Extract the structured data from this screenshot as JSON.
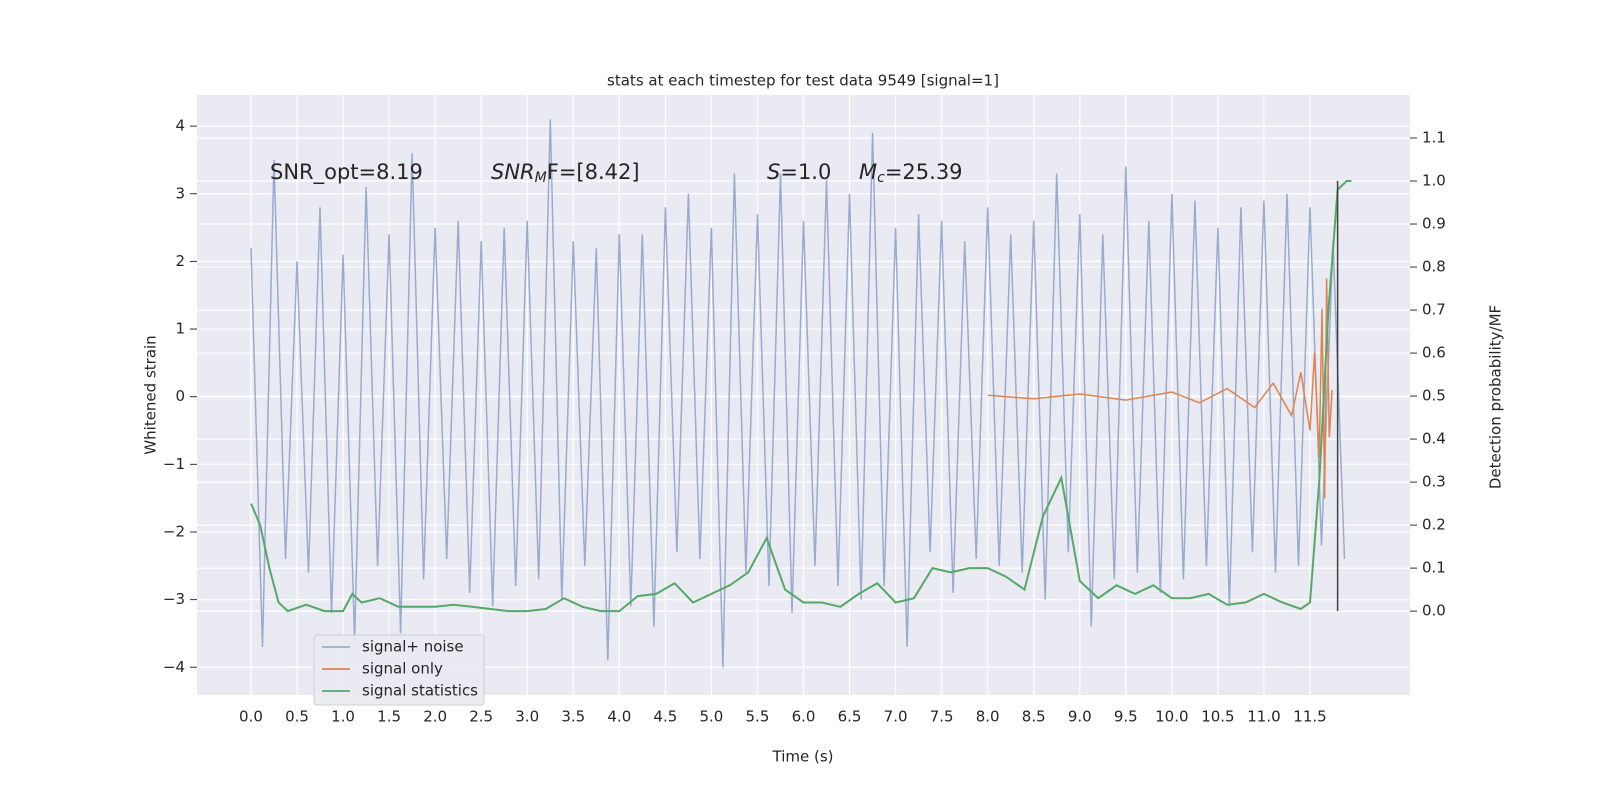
{
  "chart_data": {
    "type": "line",
    "title": "stats at each timestep for test data 9549 [signal=1]",
    "x_label": "Time (s)",
    "y_label": "Whitened strain",
    "y2_label": "Detection probability/MF",
    "xlim": [
      -0.586,
      12.586
    ],
    "ylim": [
      -4.41,
      4.46
    ],
    "y2lim": [
      -0.195,
      1.2
    ],
    "grid": true,
    "background": "#eaeaf2",
    "legend": "lower left",
    "xticks": [
      {
        "value": 0,
        "label": "0.0"
      },
      0.5,
      {
        "value": 1,
        "label": "1.0"
      },
      1.5,
      {
        "value": 2,
        "label": "2.0"
      },
      2.5,
      {
        "value": 3,
        "label": "3.0"
      },
      3.5,
      {
        "value": 4,
        "label": "4.0"
      },
      4.5,
      {
        "value": 5,
        "label": "5.0"
      },
      5.5,
      {
        "value": 6,
        "label": "6.0"
      },
      6.5,
      {
        "value": 7,
        "label": "7.0"
      },
      7.5,
      {
        "value": 8,
        "label": "8.0"
      },
      8.5,
      {
        "value": 9,
        "label": "9.0"
      },
      9.5,
      {
        "value": 10,
        "label": "10.0"
      },
      10.5,
      {
        "value": 11,
        "label": "11.0"
      },
      11.5
    ],
    "yticks": [
      {
        "value": -4,
        "label": "−4"
      },
      {
        "value": -3,
        "label": "−3"
      },
      {
        "value": -2,
        "label": "−2"
      },
      {
        "value": -1,
        "label": "−1"
      },
      0,
      1,
      2,
      3,
      4
    ],
    "y2ticks": [
      {
        "value": 0,
        "label": "0.0"
      },
      0.1,
      0.2,
      0.3,
      0.4,
      0.5,
      0.6,
      0.7,
      0.8,
      0.9,
      {
        "value": 1,
        "label": "1.0"
      },
      1.1
    ],
    "annotations": [
      {
        "parts": [
          "SNR_opt=8.19"
        ]
      },
      {
        "parts": [
          "SNR",
          "M",
          "F=[8.42]"
        ]
      },
      {
        "parts": [
          "S",
          "=1.0"
        ]
      },
      {
        "parts": [
          "M",
          "c",
          "=25.39"
        ]
      }
    ],
    "series": [
      {
        "name": "signal+ noise",
        "color": "#9aabd0",
        "axis": "y",
        "x": [
          0,
          0.125,
          0.25,
          0.375,
          0.5,
          0.625,
          0.75,
          0.875,
          1,
          1.125,
          1.25,
          1.375,
          1.5,
          1.625,
          1.75,
          1.875,
          2,
          2.125,
          2.25,
          2.375,
          2.5,
          2.625,
          2.75,
          2.875,
          3,
          3.125,
          3.25,
          3.375,
          3.5,
          3.625,
          3.75,
          3.875,
          4,
          4.125,
          4.25,
          4.375,
          4.5,
          4.625,
          4.75,
          4.875,
          5,
          5.125,
          5.25,
          5.375,
          5.5,
          5.625,
          5.75,
          5.875,
          6,
          6.125,
          6.25,
          6.375,
          6.5,
          6.625,
          6.75,
          6.875,
          7,
          7.125,
          7.25,
          7.375,
          7.5,
          7.625,
          7.75,
          7.875,
          8,
          8.125,
          8.25,
          8.375,
          8.5,
          8.625,
          8.75,
          8.875,
          9,
          9.125,
          9.25,
          9.375,
          9.5,
          9.625,
          9.75,
          9.875,
          10,
          10.125,
          10.25,
          10.375,
          10.5,
          10.625,
          10.75,
          10.875,
          11,
          11.125,
          11.25,
          11.375,
          11.5,
          11.625,
          11.75,
          11.875
        ],
        "values": [
          2.2,
          -3.7,
          3.5,
          -2.4,
          2.0,
          -2.6,
          2.8,
          -3.2,
          2.1,
          -3.6,
          3.1,
          -2.5,
          2.4,
          -3.5,
          3.6,
          -2.7,
          2.5,
          -2.4,
          2.6,
          -2.9,
          2.3,
          -3.1,
          2.5,
          -2.8,
          2.6,
          -2.7,
          4.1,
          -3.0,
          2.3,
          -2.5,
          2.2,
          -3.9,
          2.4,
          -3.1,
          2.4,
          -3.4,
          2.8,
          -2.3,
          3.0,
          -2.4,
          2.5,
          -4.0,
          3.3,
          -2.6,
          2.7,
          -2.8,
          3.3,
          -3.2,
          2.6,
          -2.5,
          3.2,
          -2.8,
          3.0,
          -3.0,
          3.9,
          -2.8,
          2.5,
          -3.7,
          2.7,
          -2.3,
          2.6,
          -2.9,
          2.3,
          -2.4,
          2.8,
          -2.5,
          2.4,
          -2.6,
          2.6,
          -3.0,
          3.3,
          -2.3,
          2.7,
          -3.4,
          2.4,
          -2.7,
          3.4,
          -2.6,
          2.6,
          -2.9,
          3.0,
          -2.7,
          2.9,
          -2.5,
          2.5,
          -3.1,
          2.8,
          -2.3,
          2.9,
          -2.6,
          3.0,
          -2.5,
          2.8,
          -2.2,
          2.3,
          -2.4
        ]
      },
      {
        "name": "signal only",
        "color": "#dd8452",
        "axis": "y",
        "x": [
          8,
          8.5,
          9,
          9.5,
          10,
          10.3,
          10.6,
          10.9,
          11.1,
          11.3,
          11.4,
          11.5,
          11.55,
          11.6,
          11.63,
          11.66,
          11.68,
          11.71,
          11.74
        ],
        "values": [
          0.02,
          -0.03,
          0.04,
          -0.05,
          0.07,
          -0.09,
          0.12,
          -0.16,
          0.2,
          -0.28,
          0.36,
          -0.5,
          0.65,
          -0.9,
          1.3,
          -1.5,
          1.75,
          -0.6,
          0.1
        ]
      },
      {
        "name": "signal statistics",
        "color": "#55a868",
        "axis": "y2",
        "x": [
          0.0,
          0.1,
          0.2,
          0.3,
          0.4,
          0.6,
          0.8,
          1.0,
          1.1,
          1.2,
          1.4,
          1.6,
          1.8,
          2.0,
          2.2,
          2.4,
          2.6,
          2.8,
          3.0,
          3.2,
          3.4,
          3.6,
          3.8,
          4.0,
          4.2,
          4.4,
          4.6,
          4.8,
          5.0,
          5.2,
          5.4,
          5.6,
          5.8,
          6.0,
          6.2,
          6.4,
          6.6,
          6.8,
          7.0,
          7.2,
          7.4,
          7.6,
          7.8,
          8.0,
          8.2,
          8.4,
          8.6,
          8.8,
          9.0,
          9.2,
          9.4,
          9.6,
          9.8,
          10.0,
          10.2,
          10.4,
          10.6,
          10.8,
          11.0,
          11.2,
          11.4,
          11.5,
          11.6,
          11.7,
          11.8,
          11.9,
          11.95
        ],
        "values": [
          0.25,
          0.2,
          0.1,
          0.02,
          0.0,
          0.015,
          0.0,
          0.0,
          0.04,
          0.02,
          0.03,
          0.01,
          0.01,
          0.01,
          0.015,
          0.01,
          0.005,
          0.0,
          0.0,
          0.005,
          0.03,
          0.01,
          0.0,
          0.0,
          0.035,
          0.04,
          0.065,
          0.02,
          0.04,
          0.06,
          0.09,
          0.17,
          0.05,
          0.02,
          0.02,
          0.01,
          0.04,
          0.065,
          0.02,
          0.03,
          0.1,
          0.09,
          0.1,
          0.1,
          0.08,
          0.05,
          0.22,
          0.31,
          0.07,
          0.03,
          0.06,
          0.04,
          0.06,
          0.03,
          0.03,
          0.04,
          0.015,
          0.02,
          0.04,
          0.02,
          0.005,
          0.02,
          0.3,
          0.7,
          0.98,
          1.0,
          1.0
        ]
      }
    ],
    "marker_line": {
      "x": 11.8,
      "ymin": 0,
      "ymax": 1.0,
      "color": "#404040"
    }
  }
}
